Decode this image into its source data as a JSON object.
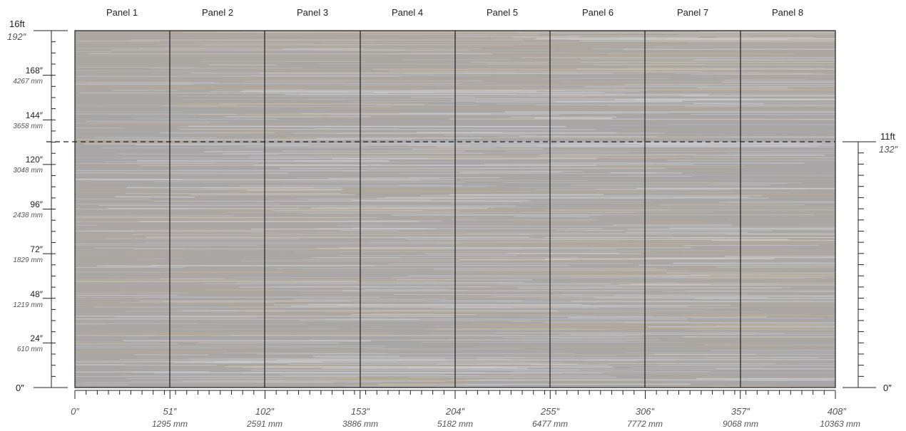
{
  "panels": [
    "Panel 1",
    "Panel 2",
    "Panel 3",
    "Panel 4",
    "Panel 5",
    "Panel 6",
    "Panel 7",
    "Panel 8"
  ],
  "left_ruler": {
    "top_ft": "16ft",
    "top_in": "192″",
    "bottom": "0″",
    "major": [
      {
        "in": "168″",
        "mm": "4267 mm"
      },
      {
        "in": "144″",
        "mm": "3658 mm"
      },
      {
        "in": "120″",
        "mm": "3048 mm"
      },
      {
        "in": "96″",
        "mm": "2438 mm"
      },
      {
        "in": "72″",
        "mm": "1829 mm"
      },
      {
        "in": "48″",
        "mm": "1219 mm"
      },
      {
        "in": "24″",
        "mm": "610 mm"
      }
    ]
  },
  "right_ruler": {
    "top_ft": "11ft",
    "top_in": "132″",
    "bottom": "0″"
  },
  "bottom_ruler": {
    "start": "0″",
    "major": [
      {
        "in": "51″",
        "mm": "1295 mm"
      },
      {
        "in": "102″",
        "mm": "2591 mm"
      },
      {
        "in": "153″",
        "mm": "3886 mm"
      },
      {
        "in": "204″",
        "mm": "5182 mm"
      },
      {
        "in": "255″",
        "mm": "6477 mm"
      },
      {
        "in": "306″",
        "mm": "7772 mm"
      },
      {
        "in": "357″",
        "mm": "9068 mm"
      },
      {
        "in": "408″",
        "mm": "10363 mm"
      }
    ]
  },
  "colors": {
    "texture_base": "#a6a6a9",
    "streak_light": "#d4d6dc",
    "streak_amber": "#c9ad7e",
    "divider": "#1e1e1e"
  }
}
